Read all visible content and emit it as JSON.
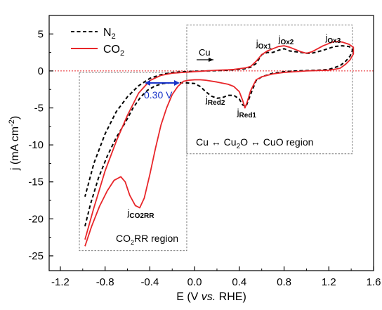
{
  "chart_data": {
    "type": "line",
    "xlabel_parts": [
      "E (V ",
      "vs.",
      " RHE)"
    ],
    "ylabel_parts": [
      "j (mA cm",
      "-2",
      ")"
    ],
    "xlim": [
      -1.3,
      1.6
    ],
    "ylim": [
      -27,
      7.5
    ],
    "xticks": [
      -1.2,
      -0.8,
      -0.4,
      0.0,
      0.4,
      0.8,
      1.2,
      1.6
    ],
    "xtick_labels": [
      "-1.2",
      "-0.8",
      "-0.4",
      "0.0",
      "0.4",
      "0.8",
      "1.2",
      "1.6"
    ],
    "yticks": [
      5,
      0,
      -5,
      -10,
      -15,
      -20,
      -25
    ],
    "ytick_labels": [
      "5",
      "0",
      "-5",
      "-10",
      "-15",
      "-20",
      "-25"
    ],
    "grid": false,
    "legend_position": "top-left",
    "legend": [
      {
        "base": "N",
        "sub": "2"
      },
      {
        "base": "CO",
        "sub": "2"
      }
    ],
    "colors": {
      "N2": "#000000",
      "CO2": "#e8262a",
      "zero_line": "#e8262a",
      "arrow": "#1a35c9",
      "box": "#7a7a7a"
    },
    "series": [
      {
        "key": "N2",
        "style": "dashed",
        "x": [
          -0.98,
          -0.93,
          -0.86,
          -0.78,
          -0.7,
          -0.62,
          -0.55,
          -0.48,
          -0.42,
          -0.35,
          -0.28,
          -0.2,
          -0.1,
          0.0,
          0.05,
          0.1,
          0.15,
          0.2,
          0.25,
          0.3,
          0.35,
          0.4,
          0.43,
          0.46,
          0.5,
          0.55,
          0.6,
          0.7,
          0.8,
          0.9,
          1.0,
          1.1,
          1.2,
          1.3,
          1.35,
          1.39,
          1.41,
          1.41,
          1.38,
          1.32,
          1.25,
          1.15,
          1.05,
          1.0,
          0.95,
          0.85,
          0.8,
          0.75,
          0.7,
          0.65,
          0.6,
          0.55,
          0.5,
          0.45,
          0.4,
          0.35,
          0.3,
          0.2,
          0.1,
          0.0,
          -0.1,
          -0.2,
          -0.3,
          -0.4,
          -0.5,
          -0.6,
          -0.7,
          -0.8,
          -0.9,
          -0.98
        ],
        "y": [
          -21.0,
          -18.0,
          -14.5,
          -11.5,
          -9.0,
          -7.0,
          -5.0,
          -3.5,
          -2.6,
          -2.0,
          -1.7,
          -1.6,
          -1.6,
          -1.7,
          -2.1,
          -2.8,
          -3.4,
          -3.7,
          -3.6,
          -3.3,
          -3.3,
          -3.8,
          -4.6,
          -4.8,
          -3.2,
          -1.3,
          -0.8,
          -0.3,
          -0.1,
          0.0,
          0.05,
          0.1,
          0.2,
          0.7,
          1.3,
          2.0,
          2.7,
          3.0,
          3.3,
          3.4,
          3.3,
          2.8,
          2.4,
          2.4,
          2.5,
          2.7,
          3.0,
          2.8,
          2.5,
          2.5,
          2.2,
          1.0,
          0.5,
          0.3,
          0.2,
          0.15,
          0.1,
          0.05,
          0.0,
          -0.05,
          -0.1,
          -0.2,
          -0.5,
          -1.0,
          -2.0,
          -3.5,
          -5.5,
          -8.5,
          -12.5,
          -17.0
        ]
      },
      {
        "key": "CO2",
        "style": "solid",
        "x": [
          -0.98,
          -0.92,
          -0.85,
          -0.78,
          -0.72,
          -0.66,
          -0.62,
          -0.58,
          -0.53,
          -0.49,
          -0.45,
          -0.4,
          -0.35,
          -0.3,
          -0.25,
          -0.2,
          -0.15,
          -0.1,
          -0.05,
          0.0,
          0.05,
          0.1,
          0.2,
          0.3,
          0.35,
          0.4,
          0.43,
          0.45,
          0.47,
          0.5,
          0.55,
          0.6,
          0.7,
          0.8,
          0.9,
          1.0,
          1.1,
          1.2,
          1.3,
          1.35,
          1.39,
          1.42,
          1.42,
          1.38,
          1.32,
          1.25,
          1.15,
          1.05,
          1.0,
          0.95,
          0.85,
          0.8,
          0.75,
          0.7,
          0.65,
          0.6,
          0.55,
          0.5,
          0.45,
          0.4,
          0.35,
          0.3,
          0.2,
          0.1,
          0.0,
          -0.1,
          -0.2,
          -0.3,
          -0.4,
          -0.5,
          -0.6,
          -0.7,
          -0.8,
          -0.9,
          -0.98
        ],
        "y": [
          -23.7,
          -21.0,
          -18.3,
          -16.2,
          -14.8,
          -14.3,
          -15.0,
          -16.8,
          -18.2,
          -18.5,
          -17.2,
          -14.0,
          -10.5,
          -7.3,
          -5.0,
          -3.2,
          -2.1,
          -1.4,
          -1.25,
          -1.2,
          -1.2,
          -1.25,
          -1.5,
          -1.8,
          -2.1,
          -2.8,
          -4.0,
          -5.0,
          -4.2,
          -2.7,
          -1.2,
          -0.8,
          -0.4,
          -0.2,
          -0.1,
          0.0,
          0.05,
          0.1,
          0.35,
          0.9,
          1.5,
          2.3,
          3.2,
          3.6,
          3.9,
          4.0,
          3.4,
          2.6,
          2.4,
          2.6,
          3.2,
          3.4,
          3.3,
          3.0,
          2.7,
          2.2,
          1.3,
          0.6,
          0.4,
          0.3,
          0.2,
          0.15,
          0.1,
          0.0,
          -0.1,
          -0.2,
          -0.3,
          -0.6,
          -1.3,
          -3.0,
          -6.0,
          -9.5,
          -13.5,
          -18.5,
          -22.8
        ]
      }
    ],
    "annotations": [
      {
        "key": "ox1",
        "base": "j",
        "sub": "Ox1",
        "x": 0.55,
        "y": 3.3
      },
      {
        "key": "ox2",
        "base": "j",
        "sub": "Ox2",
        "x": 0.75,
        "y": 3.9
      },
      {
        "key": "ox3",
        "base": "j",
        "sub": "Ox3",
        "x": 1.17,
        "y": 4.1
      },
      {
        "key": "red2",
        "base": "j",
        "sub": "Red2",
        "x": 0.1,
        "y": -4.3
      },
      {
        "key": "red1",
        "base": "j",
        "sub": "Red1",
        "x": 0.38,
        "y": -6.0
      },
      {
        "key": "co2rr",
        "base": "j",
        "sub": "CO2RR",
        "x": -0.6,
        "y": -19.6
      }
    ],
    "cu_arrow_label": "Cu",
    "shift_label": "0.30 V",
    "region_cu_parts": [
      "Cu ↔ Cu",
      "2",
      "O ↔ CuO region"
    ],
    "region_co2rr_parts": [
      "CO",
      "2",
      "RR region"
    ]
  }
}
